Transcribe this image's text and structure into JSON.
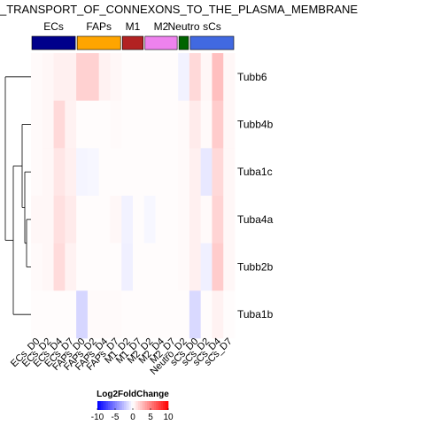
{
  "chart_data": {
    "type": "heatmap",
    "title": "_TRANSPORT_OF_CONNEXONS_TO_THE_PLASMA_MEMBRANE",
    "columns": [
      "ECs_D0",
      "ECs_D2",
      "ECs_D4",
      "ECs_D7",
      "FAPs_D0",
      "FAPs_D2",
      "FAPs_D4",
      "FAPs_D7",
      "M1_D2",
      "M1_D7",
      "M2_D2",
      "M2_D4",
      "M2_D7",
      "Neutro_D2",
      "sCs_D0",
      "sCs_D2",
      "sCs_D4",
      "sCs_D7"
    ],
    "rows": [
      "Tubb6",
      "Tubb4b",
      "Tuba1c",
      "Tuba4a",
      "Tubb2b",
      "Tuba1b"
    ],
    "values": [
      [
        0.2,
        0.3,
        0.6,
        0.6,
        1.8,
        1.8,
        0.5,
        0.3,
        0.1,
        0.1,
        0.1,
        0.1,
        0.1,
        -0.5,
        1.5,
        0.3,
        2.5,
        0.3
      ],
      [
        0.2,
        0.3,
        1.5,
        0.5,
        0.1,
        0.1,
        0.1,
        0.2,
        0.1,
        0.1,
        0.1,
        0.1,
        0.1,
        0.2,
        0.8,
        0.2,
        2.0,
        0.3
      ],
      [
        0.2,
        0.3,
        1.0,
        0.6,
        -0.4,
        -0.3,
        0.1,
        0.1,
        0.1,
        0.1,
        0.1,
        0.1,
        0.1,
        0.2,
        0.6,
        -0.9,
        1.5,
        0.3
      ],
      [
        0.3,
        0.3,
        1.2,
        0.8,
        0.1,
        0.1,
        0.1,
        0.3,
        -0.5,
        0.1,
        -0.3,
        0.1,
        0.1,
        0.2,
        0.6,
        0.2,
        1.7,
        0.3
      ],
      [
        0.2,
        0.3,
        1.4,
        0.5,
        0.1,
        0.1,
        0.1,
        0.1,
        -0.6,
        0.1,
        0.1,
        0.1,
        0.1,
        0.2,
        0.6,
        -0.6,
        2.0,
        0.3
      ],
      [
        0.1,
        0.1,
        0.1,
        0.1,
        -1.6,
        0.2,
        0.2,
        0.2,
        0.1,
        0.1,
        0.1,
        0.1,
        0.1,
        0.1,
        -1.5,
        0.1,
        0.5,
        0.1
      ]
    ],
    "groups": [
      {
        "name": "ECs",
        "color": "#00008B",
        "span": 4
      },
      {
        "name": "FAPs",
        "color": "#FFA500",
        "span": 4
      },
      {
        "name": "M1",
        "color": "#B22222",
        "span": 2
      },
      {
        "name": "M2",
        "color": "#EE82EE",
        "span": 3
      },
      {
        "name": "Neutro",
        "color": "#006400",
        "span": 1
      },
      {
        "name": "sCs",
        "color": "#4169E1",
        "span": 4
      }
    ],
    "legend": {
      "title": "Log2FoldChange",
      "ticks": [
        -10,
        -5,
        0,
        5,
        10
      ],
      "range": [
        -10,
        10
      ],
      "low_color": "#0000FF",
      "mid_color": "#FFFFFF",
      "high_color": "#FF0000"
    },
    "dendrogram": "row"
  }
}
